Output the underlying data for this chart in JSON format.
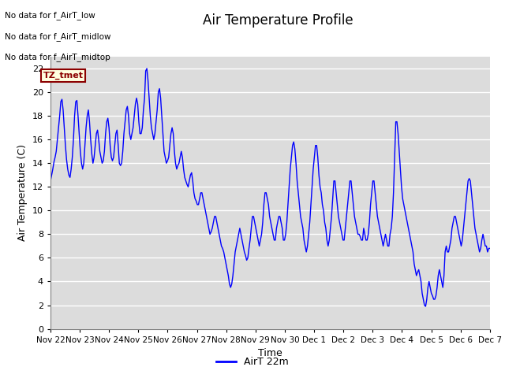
{
  "title": "Air Temperature Profile",
  "ylabel": "Air Temperature (C)",
  "xlabel": "Time",
  "legend_label": "AirT 22m",
  "text_lines": [
    "No data for f_AirT_low",
    "No data for f_AirT_midlow",
    "No data for f_AirT_midtop"
  ],
  "tz_label": "TZ_tmet",
  "ylim": [
    0,
    23
  ],
  "yticks": [
    0,
    2,
    4,
    6,
    8,
    10,
    12,
    14,
    16,
    18,
    20,
    22
  ],
  "x_tick_labels": [
    "Nov 22",
    "Nov 23",
    "Nov 24",
    "Nov 25",
    "Nov 26",
    "Nov 27",
    "Nov 28",
    "Nov 29",
    "Nov 30",
    "Dec 1",
    "Dec 2",
    "Dec 3",
    "Dec 4",
    "Dec 5",
    "Dec 6",
    "Dec 7"
  ],
  "line_color": "#0000FF",
  "background_color": "#ffffff",
  "plot_bg_color": "#dcdcdc",
  "grid_color": "#ffffff",
  "temp_data": [
    12.5,
    13.0,
    13.5,
    14.1,
    14.5,
    15.0,
    16.0,
    17.0,
    18.0,
    19.2,
    19.4,
    18.5,
    17.0,
    15.5,
    14.3,
    13.5,
    13.0,
    12.8,
    13.5,
    14.5,
    16.0,
    18.0,
    19.2,
    19.3,
    18.0,
    16.5,
    15.0,
    14.0,
    13.5,
    14.0,
    15.5,
    17.0,
    18.0,
    18.5,
    17.5,
    16.0,
    14.8,
    14.0,
    14.5,
    15.5,
    16.5,
    16.8,
    16.0,
    15.0,
    14.5,
    14.0,
    14.2,
    15.0,
    16.5,
    17.5,
    17.8,
    17.0,
    15.5,
    14.5,
    14.2,
    14.5,
    15.5,
    16.5,
    16.8,
    15.5,
    14.0,
    13.8,
    14.0,
    15.0,
    16.5,
    17.5,
    18.5,
    18.8,
    18.0,
    16.5,
    16.0,
    16.5,
    17.0,
    18.0,
    19.0,
    19.5,
    19.0,
    17.5,
    16.5,
    16.5,
    17.0,
    18.5,
    19.5,
    21.8,
    22.0,
    21.0,
    19.5,
    18.0,
    17.0,
    16.5,
    16.0,
    16.5,
    17.5,
    18.5,
    20.0,
    20.3,
    19.5,
    18.0,
    16.5,
    15.0,
    14.5,
    14.0,
    14.2,
    14.5,
    15.5,
    16.5,
    17.0,
    16.5,
    15.0,
    14.0,
    13.5,
    13.8,
    14.0,
    14.5,
    15.0,
    14.5,
    13.5,
    12.8,
    12.5,
    12.2,
    12.0,
    12.5,
    13.0,
    13.2,
    12.5,
    11.5,
    11.0,
    10.8,
    10.5,
    10.5,
    11.0,
    11.5,
    11.5,
    11.0,
    10.5,
    10.0,
    9.5,
    9.0,
    8.5,
    8.0,
    8.2,
    8.5,
    9.0,
    9.5,
    9.5,
    9.0,
    8.5,
    8.0,
    7.5,
    7.0,
    6.8,
    6.5,
    6.0,
    5.5,
    5.0,
    4.5,
    3.8,
    3.5,
    3.8,
    4.5,
    5.5,
    6.5,
    7.0,
    7.5,
    8.0,
    8.5,
    8.0,
    7.5,
    7.0,
    6.5,
    6.2,
    5.8,
    6.0,
    6.8,
    7.5,
    8.5,
    9.5,
    9.5,
    9.0,
    8.5,
    8.0,
    7.5,
    7.0,
    7.5,
    8.0,
    9.0,
    10.5,
    11.5,
    11.5,
    11.0,
    10.5,
    9.5,
    9.0,
    8.5,
    8.0,
    7.5,
    7.5,
    8.5,
    9.0,
    9.5,
    9.5,
    9.0,
    8.5,
    7.5,
    7.5,
    8.0,
    9.0,
    10.5,
    12.0,
    13.5,
    14.5,
    15.5,
    15.8,
    15.2,
    14.0,
    12.5,
    11.5,
    10.5,
    9.5,
    9.0,
    8.5,
    7.5,
    7.0,
    6.5,
    7.0,
    8.0,
    9.0,
    10.5,
    12.0,
    13.5,
    14.5,
    15.5,
    15.5,
    14.5,
    13.0,
    12.0,
    11.5,
    10.5,
    10.0,
    9.0,
    8.5,
    7.5,
    7.0,
    7.5,
    8.5,
    9.5,
    11.0,
    12.5,
    12.5,
    11.5,
    10.5,
    9.5,
    9.0,
    8.5,
    8.0,
    7.5,
    7.5,
    8.5,
    9.5,
    10.5,
    11.5,
    12.5,
    12.5,
    11.5,
    10.5,
    9.5,
    9.0,
    8.5,
    8.0,
    8.0,
    7.8,
    7.5,
    7.5,
    8.5,
    8.0,
    7.5,
    7.5,
    8.0,
    9.0,
    10.5,
    11.5,
    12.5,
    12.5,
    11.5,
    10.5,
    9.5,
    9.0,
    8.5,
    8.0,
    7.5,
    7.0,
    7.5,
    8.0,
    7.5,
    7.0,
    7.0,
    8.0,
    8.5,
    9.5,
    11.5,
    14.5,
    17.5,
    17.5,
    16.5,
    15.0,
    13.5,
    12.0,
    11.0,
    10.5,
    10.0,
    9.5,
    9.0,
    8.5,
    8.0,
    7.5,
    7.0,
    6.5,
    5.5,
    5.0,
    4.5,
    4.8,
    5.0,
    4.5,
    4.0,
    3.0,
    2.5,
    2.0,
    1.9,
    2.5,
    3.5,
    4.0,
    3.5,
    3.0,
    2.8,
    2.5,
    2.5,
    2.8,
    3.5,
    4.5,
    5.0,
    4.5,
    4.0,
    3.5,
    4.5,
    6.5,
    7.0,
    6.5,
    6.5,
    7.0,
    7.5,
    8.5,
    9.0,
    9.5,
    9.5,
    9.0,
    8.5,
    8.0,
    7.5,
    7.0,
    7.5,
    8.5,
    9.5,
    10.5,
    11.5,
    12.5,
    12.7,
    12.5,
    11.5,
    10.5,
    9.5,
    8.5,
    8.0,
    7.5,
    7.0,
    6.5,
    6.8,
    7.5,
    8.0,
    7.5,
    7.0,
    7.0,
    6.5,
    6.8,
    6.8
  ]
}
